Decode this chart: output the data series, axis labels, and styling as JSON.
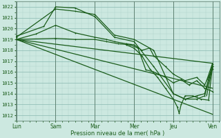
{
  "xlabel": "Pression niveau de la mer( hPa )",
  "bg_color": "#cce8e0",
  "grid_color_minor": "#aed4cc",
  "grid_color_major": "#88b8b0",
  "line_color": "#1a5c1a",
  "ylim": [
    1011.5,
    1022.5
  ],
  "yticks": [
    1012,
    1013,
    1014,
    1015,
    1016,
    1017,
    1018,
    1019,
    1020,
    1021,
    1022
  ],
  "xtick_labels": [
    "Lun",
    "Sam",
    "Mar",
    "Mer",
    "Jeu",
    "Ven"
  ],
  "xtick_positions": [
    0,
    1,
    2,
    3,
    4,
    5
  ],
  "xlim": [
    -0.02,
    5.18
  ],
  "lines": [
    {
      "x": [
        0.0,
        1.0,
        1.5,
        2.0,
        2.5,
        3.0,
        3.5,
        4.0,
        4.3,
        4.6,
        4.8,
        5.0
      ],
      "y": [
        1019.2,
        1021.8,
        1021.6,
        1021.3,
        1019.4,
        1019.0,
        1018.0,
        1014.0,
        1013.5,
        1013.5,
        1013.8,
        1016.5
      ],
      "marker": true,
      "lw": 0.9
    },
    {
      "x": [
        0.0,
        0.7,
        1.0,
        1.5,
        2.0,
        2.5,
        3.0,
        3.5,
        4.0,
        4.3,
        4.6,
        4.8,
        5.0
      ],
      "y": [
        1019.3,
        1020.2,
        1022.0,
        1021.9,
        1021.1,
        1019.2,
        1018.8,
        1016.5,
        1014.0,
        1013.5,
        1013.8,
        1014.0,
        1016.7
      ],
      "marker": true,
      "lw": 0.9
    },
    {
      "x": [
        0.0,
        0.5,
        1.0,
        1.5,
        2.0,
        2.3,
        2.5,
        2.8,
        3.0,
        3.2,
        3.4,
        3.5,
        3.8,
        4.0,
        4.3,
        4.6,
        4.8,
        5.0
      ],
      "y": [
        1019.0,
        1019.5,
        1020.3,
        1019.6,
        1019.2,
        1019.0,
        1018.8,
        1018.6,
        1018.5,
        1018.0,
        1018.2,
        1017.5,
        1016.5,
        1015.8,
        1015.2,
        1015.5,
        1014.8,
        1016.3
      ],
      "marker": true,
      "lw": 0.9
    },
    {
      "x": [
        0.0,
        1.0,
        1.5,
        2.0,
        2.3,
        2.6,
        2.9,
        3.1,
        3.3,
        3.5,
        3.8,
        4.0,
        4.2,
        4.4,
        4.6,
        4.8,
        5.0
      ],
      "y": [
        1019.0,
        1019.1,
        1019.0,
        1019.0,
        1018.8,
        1018.6,
        1018.5,
        1018.2,
        1016.2,
        1016.0,
        1015.5,
        1015.0,
        1015.3,
        1014.8,
        1015.2,
        1014.5,
        1014.2
      ],
      "marker": true,
      "lw": 0.9
    },
    {
      "x": [
        2.8,
        3.0,
        3.2,
        3.4,
        3.6,
        3.8,
        4.0,
        4.1,
        4.15,
        4.2,
        4.3,
        4.5,
        4.7,
        4.9,
        5.0
      ],
      "y": [
        1018.5,
        1018.2,
        1017.5,
        1016.3,
        1015.5,
        1014.5,
        1013.5,
        1012.8,
        1012.2,
        1013.0,
        1013.8,
        1013.8,
        1013.5,
        1013.4,
        1016.5
      ],
      "marker": true,
      "lw": 0.9
    },
    {
      "x": [
        0.0,
        5.0
      ],
      "y": [
        1019.0,
        1016.8
      ],
      "marker": false,
      "lw": 0.9
    },
    {
      "x": [
        0.0,
        5.0
      ],
      "y": [
        1019.0,
        1014.5
      ],
      "marker": false,
      "lw": 0.9
    },
    {
      "x": [
        0.0,
        5.0
      ],
      "y": [
        1019.0,
        1012.1
      ],
      "marker": false,
      "lw": 0.9
    },
    {
      "x": [
        4.85,
        5.0
      ],
      "y": [
        1015.2,
        1016.8
      ],
      "marker": false,
      "lw": 0.9
    },
    {
      "x": [
        4.85,
        5.0
      ],
      "y": [
        1013.8,
        1016.5
      ],
      "marker": false,
      "lw": 0.9
    }
  ],
  "vlines": [
    0,
    1,
    2,
    3,
    4,
    5
  ]
}
